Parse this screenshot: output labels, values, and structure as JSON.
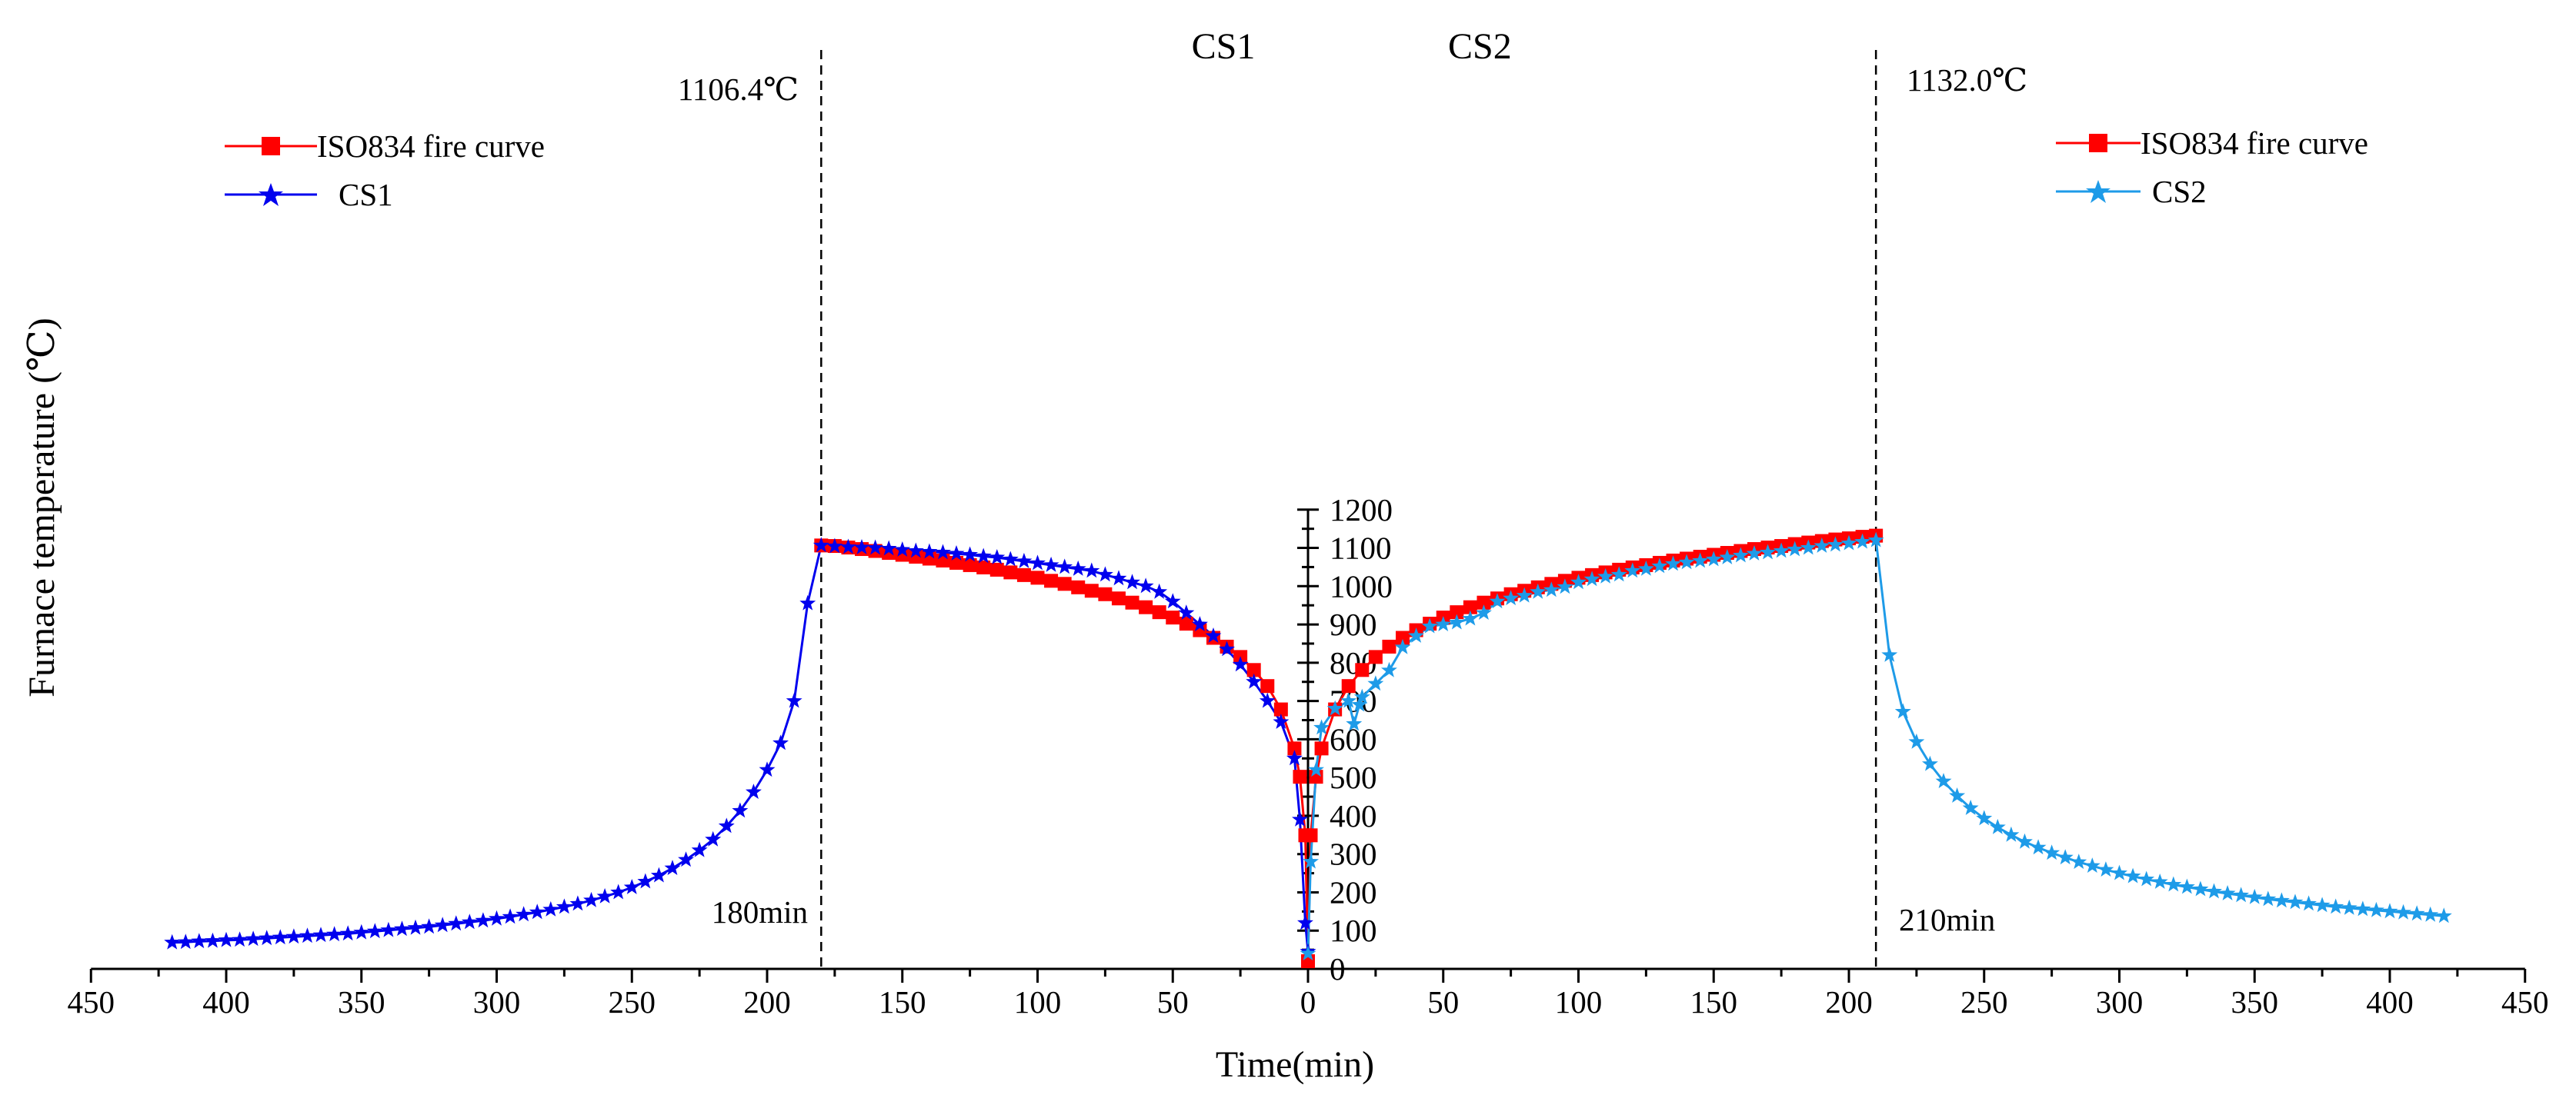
{
  "chart_data": {
    "type": "line",
    "xlabel": "Time(min)",
    "ylabel": "Furnace temperature (℃)",
    "x_ticks_left": [
      450,
      400,
      350,
      300,
      250,
      200,
      150,
      100,
      50,
      0
    ],
    "x_ticks_right": [
      50,
      100,
      150,
      200,
      250,
      300,
      350,
      400,
      450
    ],
    "y_ticks": [
      0,
      100,
      200,
      300,
      400,
      500,
      600,
      700,
      800,
      900,
      1000,
      1100,
      1200
    ],
    "xlim": [
      0,
      450
    ],
    "ylim": [
      0,
      1200
    ],
    "panel_labels": {
      "left": "CS1",
      "right": "CS2"
    },
    "annotations": {
      "left_peak": "1106.4℃",
      "left_time": "180min",
      "right_peak": "1132.0℃",
      "right_time": "210min"
    },
    "legends": {
      "left": [
        "ISO834 fire curve",
        "CS1"
      ],
      "right": [
        "ISO834 fire curve",
        "CS2"
      ]
    },
    "colors": {
      "iso": "#ff0000",
      "cs1": "#0000ee",
      "cs2": "#1e9be8"
    },
    "series": [
      {
        "name": "ISO834 fire curve",
        "panel": "left",
        "color": "#ff0000",
        "marker": "square",
        "x": [
          0,
          1,
          3,
          5,
          10,
          15,
          20,
          25,
          30,
          35,
          40,
          45,
          50,
          55,
          60,
          65,
          70,
          75,
          80,
          85,
          90,
          95,
          100,
          105,
          110,
          115,
          120,
          125,
          130,
          135,
          140,
          145,
          150,
          155,
          160,
          165,
          170,
          175,
          180
        ],
        "y": [
          20,
          349,
          502,
          576,
          678,
          739,
          781,
          815,
          842,
          865,
          885,
          902,
          918,
          932,
          945,
          957,
          968,
          979,
          988,
          997,
          1006,
          1014,
          1022,
          1029,
          1036,
          1043,
          1049,
          1055,
          1061,
          1067,
          1072,
          1077,
          1082,
          1087,
          1092,
          1097,
          1101,
          1105,
          1106.4
        ]
      },
      {
        "name": "CS1",
        "panel": "left",
        "color": "#0000ee",
        "marker": "star",
        "x": [
          0,
          1,
          3,
          5,
          10,
          15,
          20,
          25,
          30,
          35,
          40,
          45,
          50,
          55,
          60,
          65,
          70,
          75,
          80,
          85,
          90,
          95,
          100,
          105,
          110,
          115,
          120,
          125,
          130,
          135,
          140,
          145,
          150,
          155,
          160,
          165,
          170,
          175,
          180,
          185,
          190,
          195,
          200,
          205,
          210,
          215,
          220,
          225,
          230,
          235,
          240,
          245,
          250,
          255,
          260,
          265,
          270,
          275,
          280,
          285,
          290,
          295,
          300,
          305,
          310,
          315,
          320,
          325,
          330,
          335,
          340,
          345,
          350,
          355,
          360,
          365,
          370,
          375,
          380,
          385,
          390,
          395,
          400,
          405,
          410,
          415,
          420
        ],
        "y": [
          45,
          120,
          390,
          550,
          645,
          700,
          750,
          795,
          835,
          870,
          900,
          930,
          960,
          985,
          1000,
          1010,
          1020,
          1030,
          1040,
          1045,
          1050,
          1055,
          1060,
          1065,
          1070,
          1075,
          1078,
          1082,
          1085,
          1088,
          1090,
          1092,
          1095,
          1098,
          1100,
          1101,
          1102,
          1104,
          1106.4,
          955,
          700,
          590,
          520,
          462,
          413,
          373,
          338,
          310,
          285,
          263,
          244,
          228,
          213,
          200,
          189,
          179,
          170,
          162,
          155,
          148,
          142,
          136,
          131,
          126,
          122,
          118,
          114,
          110,
          107,
          104,
          101,
          98,
          95,
          92,
          90,
          88,
          86,
          84,
          82,
          80,
          78,
          76,
          75,
          73,
          72,
          70,
          69
        ]
      },
      {
        "name": "ISO834 fire curve",
        "panel": "right",
        "color": "#ff0000",
        "marker": "square",
        "x": [
          0,
          1,
          3,
          5,
          10,
          15,
          20,
          25,
          30,
          35,
          40,
          45,
          50,
          55,
          60,
          65,
          70,
          75,
          80,
          85,
          90,
          95,
          100,
          105,
          110,
          115,
          120,
          125,
          130,
          135,
          140,
          145,
          150,
          155,
          160,
          165,
          170,
          175,
          180,
          185,
          190,
          195,
          200,
          205,
          210
        ],
        "y": [
          20,
          349,
          502,
          576,
          678,
          739,
          781,
          815,
          842,
          865,
          885,
          902,
          918,
          932,
          945,
          957,
          968,
          979,
          988,
          997,
          1006,
          1014,
          1022,
          1029,
          1036,
          1043,
          1049,
          1055,
          1061,
          1067,
          1072,
          1077,
          1082,
          1087,
          1092,
          1097,
          1101,
          1105,
          1110,
          1114,
          1118,
          1122,
          1125,
          1129,
          1132
        ]
      },
      {
        "name": "CS2",
        "panel": "right",
        "color": "#1e9be8",
        "marker": "star",
        "x": [
          0,
          1,
          3,
          5,
          10,
          15,
          17,
          19,
          20,
          25,
          30,
          35,
          40,
          45,
          50,
          55,
          60,
          65,
          70,
          75,
          80,
          85,
          90,
          95,
          100,
          105,
          110,
          115,
          120,
          125,
          130,
          135,
          140,
          145,
          150,
          155,
          160,
          165,
          170,
          175,
          180,
          185,
          190,
          195,
          200,
          205,
          210,
          215,
          220,
          225,
          230,
          235,
          240,
          245,
          250,
          255,
          260,
          265,
          270,
          275,
          280,
          285,
          290,
          295,
          300,
          305,
          310,
          315,
          320,
          325,
          330,
          335,
          340,
          345,
          350,
          355,
          360,
          365,
          370,
          375,
          380,
          385,
          390,
          395,
          400,
          405,
          410,
          415,
          420
        ],
        "y": [
          40,
          280,
          520,
          630,
          680,
          700,
          640,
          690,
          710,
          745,
          780,
          840,
          870,
          895,
          900,
          905,
          915,
          930,
          960,
          968,
          975,
          985,
          990,
          998,
          1010,
          1018,
          1025,
          1030,
          1040,
          1045,
          1052,
          1058,
          1062,
          1066,
          1070,
          1075,
          1080,
          1085,
          1088,
          1092,
          1096,
          1100,
          1105,
          1108,
          1112,
          1116,
          1120,
          820,
          672,
          593,
          535,
          490,
          452,
          420,
          393,
          370,
          350,
          332,
          317,
          303,
          291,
          279,
          269,
          259,
          250,
          242,
          234,
          227,
          220,
          214,
          208,
          202,
          197,
          192,
          187,
          182,
          178,
          174,
          170,
          166,
          162,
          159,
          156,
          153,
          150,
          147,
          144,
          141,
          138
        ]
      }
    ]
  }
}
